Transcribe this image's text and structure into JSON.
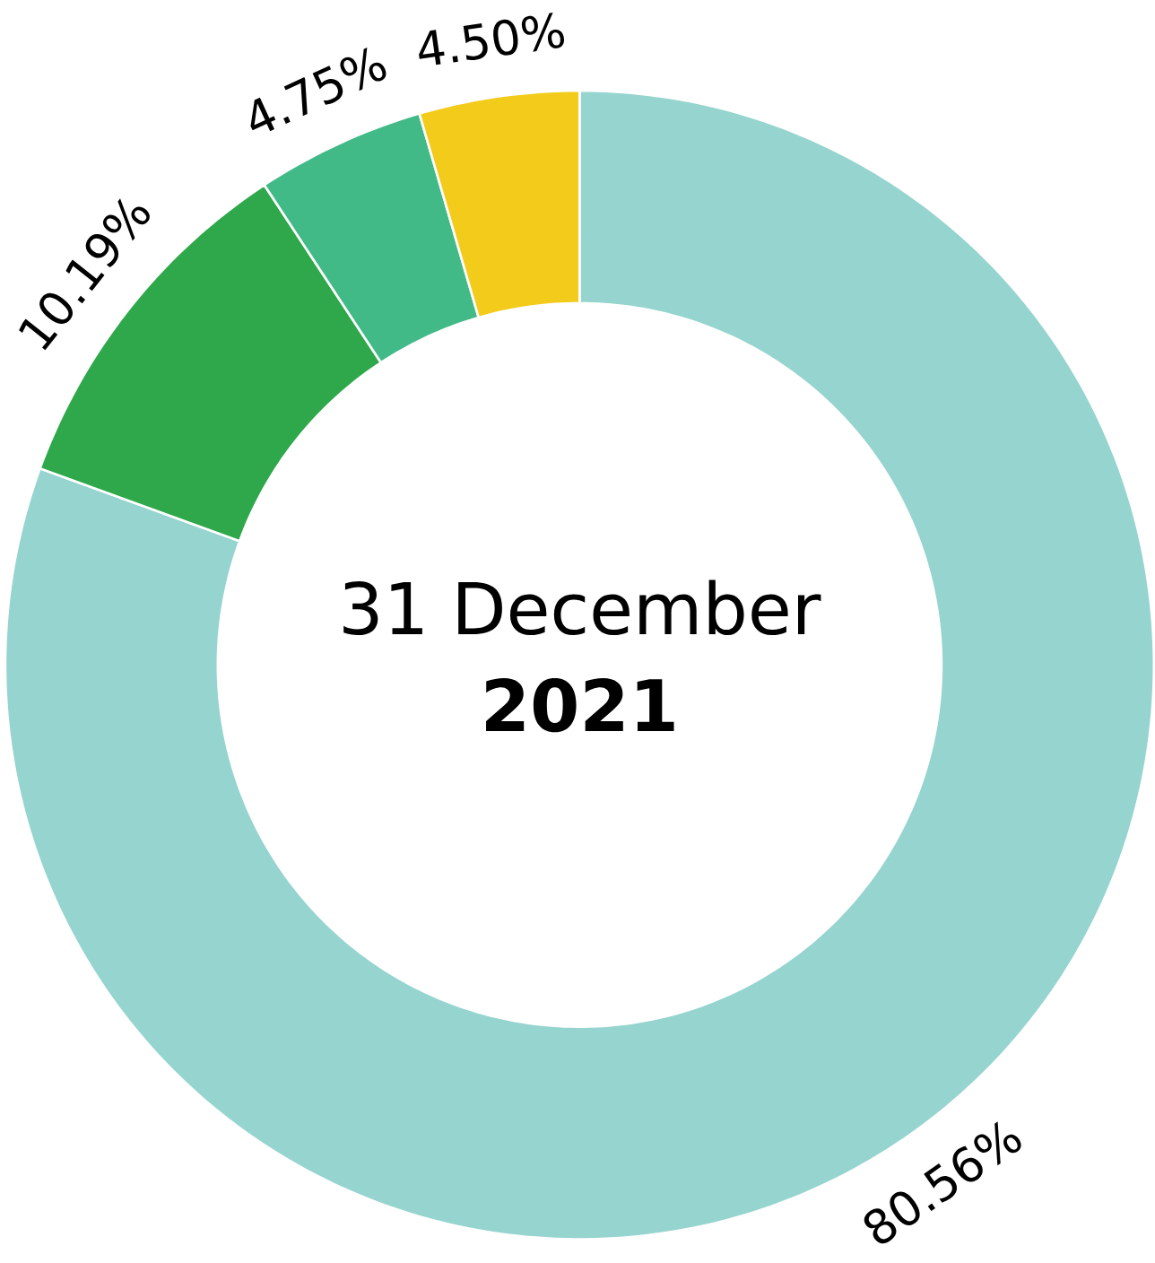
{
  "chart_data": {
    "type": "donut",
    "title": "31 December",
    "subtitle": "**2021**",
    "categories": [
      null,
      null,
      null,
      null
    ],
    "values": [
      80.56,
      10.19,
      4.75,
      4.5
    ],
    "colors": [
      "#96d4cf",
      "#2ea84a",
      "#42ba87",
      "#f2cb1b"
    ],
    "value_labels": [
      "80.56%",
      "10.19%",
      "4.75%",
      "4.50%"
    ]
  }
}
